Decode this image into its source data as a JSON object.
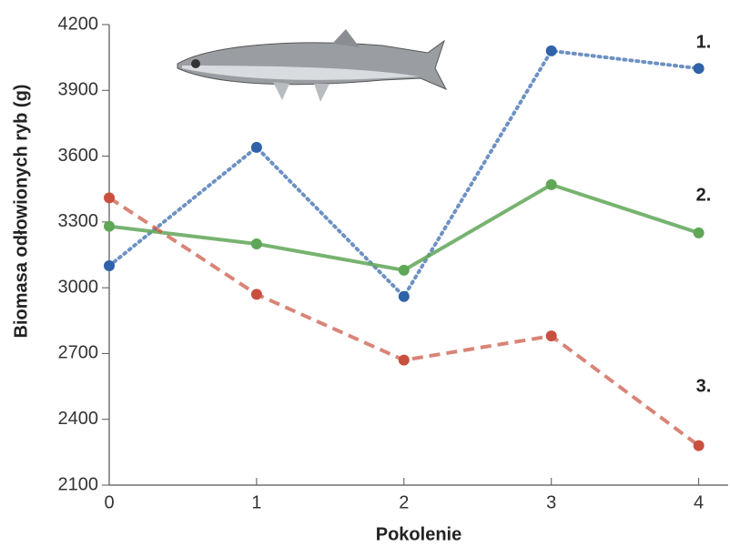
{
  "chart_data": {
    "type": "line",
    "x_label": "Pokolenie",
    "y_label": "Biomasa odłowionych ryb (g)",
    "x": [
      0,
      1,
      2,
      3,
      4
    ],
    "xlim": [
      0,
      4.2
    ],
    "xticks": [
      0,
      1,
      2,
      3,
      4
    ],
    "ylim": [
      2100,
      4200
    ],
    "yticks": [
      2100,
      2400,
      2700,
      3000,
      3300,
      3600,
      3900,
      4200
    ],
    "series": [
      {
        "name": "1.",
        "color": "#2f62a8",
        "line_style": "dotted",
        "values": [
          3100,
          3640,
          2960,
          4080,
          4000
        ]
      },
      {
        "name": "2.",
        "color": "#5fa657",
        "line_style": "solid",
        "values": [
          3280,
          3200,
          3080,
          3470,
          3250
        ]
      },
      {
        "name": "3.",
        "color": "#c9503f",
        "line_style": "dashed",
        "values": [
          3410,
          2970,
          2670,
          2780,
          2280
        ]
      }
    ]
  }
}
